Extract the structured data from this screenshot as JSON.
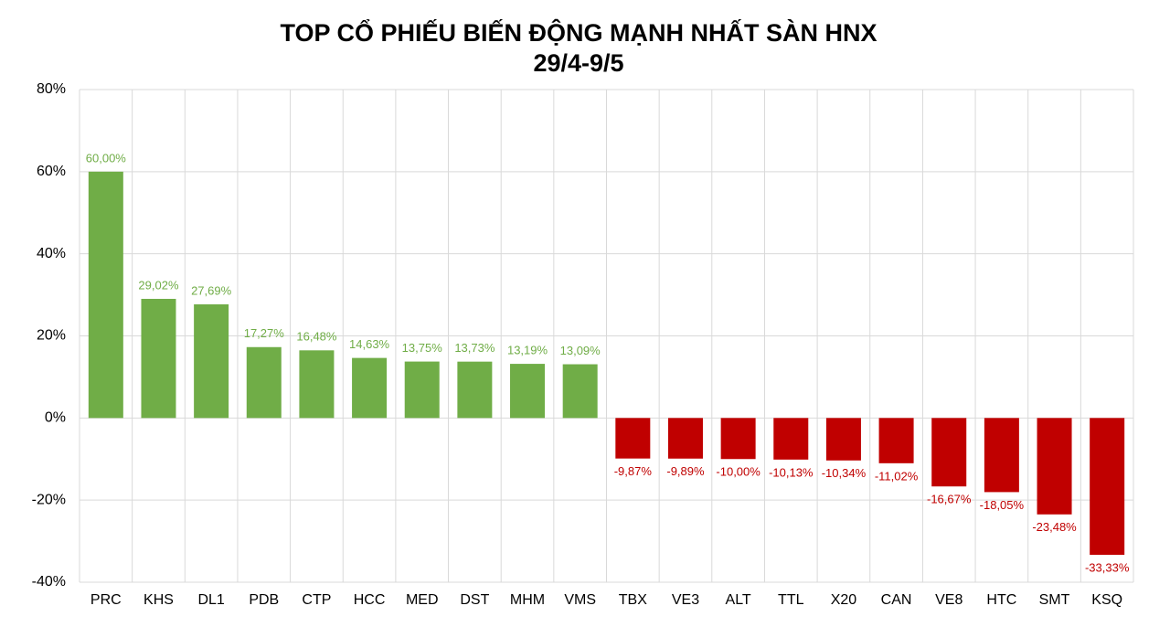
{
  "chart_data": {
    "type": "bar",
    "title": "TOP CỔ PHIẾU BIẾN ĐỘNG MẠNH NHẤT SÀN HNX",
    "subtitle": "29/4-9/5",
    "categories": [
      "PRC",
      "KHS",
      "DL1",
      "PDB",
      "CTP",
      "HCC",
      "MED",
      "DST",
      "MHM",
      "VMS",
      "TBX",
      "VE3",
      "ALT",
      "TTL",
      "X20",
      "CAN",
      "VE8",
      "HTC",
      "SMT",
      "KSQ"
    ],
    "values": [
      60.0,
      29.02,
      27.69,
      17.27,
      16.48,
      14.63,
      13.75,
      13.73,
      13.19,
      13.09,
      -9.87,
      -9.89,
      -10.0,
      -10.13,
      -10.34,
      -11.02,
      -16.67,
      -18.05,
      -23.48,
      -33.33
    ],
    "value_labels": [
      "60,00%",
      "29,02%",
      "27,69%",
      "17,27%",
      "16,48%",
      "14,63%",
      "13,75%",
      "13,73%",
      "13,19%",
      "13,09%",
      "-9,87%",
      "-9,89%",
      "-10,00%",
      "-10,13%",
      "-10,34%",
      "-11,02%",
      "-16,67%",
      "-18,05%",
      "-23,48%",
      "-33,33%"
    ],
    "positive_color": "#70ad47",
    "negative_color": "#c00000",
    "ylim": [
      -40,
      80
    ],
    "yticks": [
      {
        "value": -40,
        "label": "-40%"
      },
      {
        "value": -20,
        "label": "-20%"
      },
      {
        "value": 0,
        "label": "0%"
      },
      {
        "value": 20,
        "label": "20%"
      },
      {
        "value": 40,
        "label": "40%"
      },
      {
        "value": 60,
        "label": "60%"
      },
      {
        "value": 80,
        "label": "80%"
      }
    ],
    "grid": true
  }
}
